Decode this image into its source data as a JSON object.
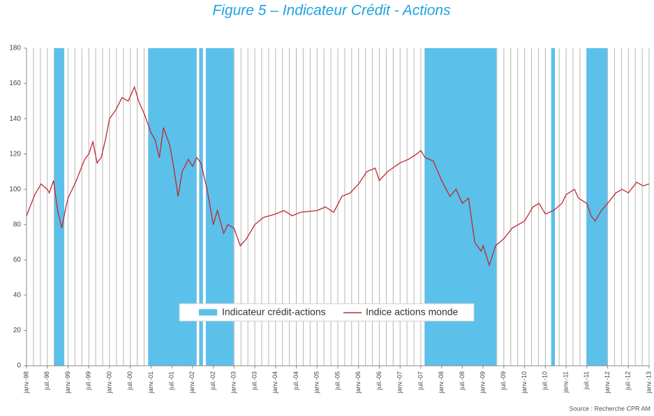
{
  "chart_data": {
    "type": "line",
    "title": "Figure 5 – Indicateur Crédit - Actions",
    "source": "Source : Recherche CPR AM",
    "xlim": [
      1998,
      2013
    ],
    "xticks": [
      {
        "value": 1998,
        "label": "janv.-98"
      },
      {
        "value": 1998.5,
        "label": "juil.-98"
      },
      {
        "value": 1999,
        "label": "janv.-99"
      },
      {
        "value": 1999.5,
        "label": "juil.-99"
      },
      {
        "value": 2000,
        "label": "janv.-00"
      },
      {
        "value": 2000.5,
        "label": "juil.-00"
      },
      {
        "value": 2001,
        "label": "janv.-01"
      },
      {
        "value": 2001.5,
        "label": "juil.-01"
      },
      {
        "value": 2002,
        "label": "janv.-02"
      },
      {
        "value": 2002.5,
        "label": "juil.-02"
      },
      {
        "value": 2003,
        "label": "janv.-03"
      },
      {
        "value": 2003.5,
        "label": "juil.-03"
      },
      {
        "value": 2004,
        "label": "janv.-04"
      },
      {
        "value": 2004.5,
        "label": "juil.-04"
      },
      {
        "value": 2005,
        "label": "janv.-05"
      },
      {
        "value": 2005.5,
        "label": "juil.-05"
      },
      {
        "value": 2006,
        "label": "janv.-06"
      },
      {
        "value": 2006.5,
        "label": "juil.-06"
      },
      {
        "value": 2007,
        "label": "janv.-07"
      },
      {
        "value": 2007.5,
        "label": "juil.-07"
      },
      {
        "value": 2008,
        "label": "janv.-08"
      },
      {
        "value": 2008.5,
        "label": "juil.-08"
      },
      {
        "value": 2009,
        "label": "janv.-09"
      },
      {
        "value": 2009.5,
        "label": "juil.-09"
      },
      {
        "value": 2010,
        "label": "janv.-10"
      },
      {
        "value": 2010.5,
        "label": "juil.-10"
      },
      {
        "value": 2011,
        "label": "janv.-11"
      },
      {
        "value": 2011.5,
        "label": "juil.-11"
      },
      {
        "value": 2012,
        "label": "janv.-12"
      },
      {
        "value": 2012.5,
        "label": "juil.-12"
      },
      {
        "value": 2013,
        "label": "janv.-13"
      }
    ],
    "ylim": [
      0,
      180
    ],
    "yticks": [
      0,
      20,
      40,
      60,
      80,
      100,
      120,
      140,
      160,
      180
    ],
    "grid": true,
    "legend": "bottom",
    "series": [
      {
        "name": "Indicateur crédit-actions",
        "color": "#5bc0ea",
        "periods": [
          [
            1998.67,
            1998.91
          ],
          [
            2000.93,
            2002.1
          ],
          [
            2002.17,
            2002.25
          ],
          [
            2002.32,
            2002.99
          ],
          [
            2007.59,
            2009.32
          ],
          [
            2010.64,
            2010.73
          ],
          [
            2011.49,
            2011.99
          ]
        ]
      },
      {
        "name": "Indice actions monde",
        "color": "#c0282d",
        "x": [
          1998.0,
          1998.2,
          1998.35,
          1998.5,
          1998.55,
          1998.65,
          1998.75,
          1998.85,
          1998.95,
          1999.0,
          1999.2,
          1999.4,
          1999.5,
          1999.6,
          1999.7,
          1999.8,
          1999.9,
          2000.0,
          2000.15,
          2000.3,
          2000.45,
          2000.6,
          2000.7,
          2000.85,
          2001.0,
          2001.1,
          2001.2,
          2001.3,
          2001.45,
          2001.55,
          2001.65,
          2001.75,
          2001.9,
          2002.0,
          2002.1,
          2002.2,
          2002.35,
          2002.5,
          2002.6,
          2002.75,
          2002.85,
          2003.0,
          2003.15,
          2003.3,
          2003.5,
          2003.7,
          2004.0,
          2004.2,
          2004.4,
          2004.6,
          2005.0,
          2005.2,
          2005.4,
          2005.6,
          2005.8,
          2006.0,
          2006.2,
          2006.4,
          2006.5,
          2006.7,
          2007.0,
          2007.2,
          2007.4,
          2007.5,
          2007.6,
          2007.8,
          2008.0,
          2008.2,
          2008.35,
          2008.5,
          2008.65,
          2008.8,
          2008.95,
          2009.0,
          2009.15,
          2009.3,
          2009.5,
          2009.7,
          2010.0,
          2010.2,
          2010.35,
          2010.5,
          2010.7,
          2010.9,
          2011.0,
          2011.2,
          2011.3,
          2011.5,
          2011.6,
          2011.7,
          2011.85,
          2012.0,
          2012.2,
          2012.35,
          2012.5,
          2012.7,
          2012.85,
          2013.0
        ],
        "values": [
          85,
          97,
          103,
          100,
          98,
          105,
          88,
          78,
          90,
          95,
          105,
          117,
          120,
          127,
          115,
          118,
          128,
          140,
          145,
          152,
          150,
          158,
          150,
          142,
          132,
          128,
          118,
          135,
          125,
          112,
          96,
          110,
          117,
          113,
          118,
          115,
          100,
          80,
          88,
          75,
          80,
          78,
          68,
          72,
          80,
          84,
          86,
          88,
          85,
          87,
          88,
          90,
          87,
          96,
          98,
          103,
          110,
          112,
          105,
          110,
          115,
          117,
          120,
          122,
          118,
          116,
          105,
          96,
          100,
          92,
          95,
          70,
          65,
          68,
          57,
          68,
          72,
          78,
          82,
          90,
          92,
          86,
          88,
          92,
          97,
          100,
          95,
          92,
          85,
          82,
          88,
          92,
          98,
          100,
          98,
          104,
          102,
          103
        ]
      }
    ]
  }
}
